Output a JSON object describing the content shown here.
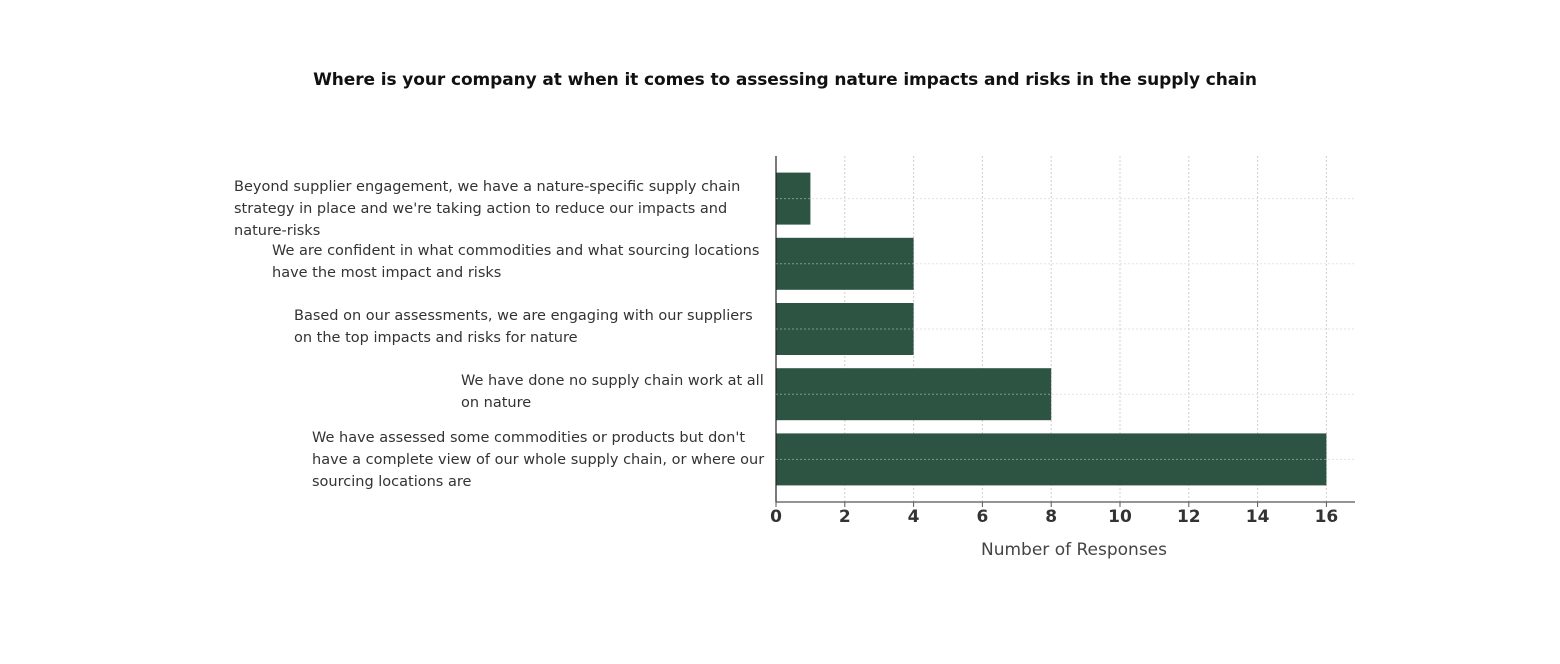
{
  "chart_data": {
    "type": "bar",
    "orientation": "horizontal",
    "title": "Where is your company at when it comes to assessing nature impacts and risks in the supply chain",
    "xlabel": "Number of Responses",
    "ylabel": "",
    "categories": [
      "Beyond supplier engagement, we have a nature-specific supply chain strategy in place and we're taking action to reduce our impacts and nature-risks",
      "We are confident in what commodities and what sourcing locations have the most impact and risks",
      "Based on our assessments, we are engaging with our suppliers on the top impacts and risks for nature",
      "We have done no supply chain work at all on nature",
      "We have assessed some commodities or products but don't have a complete view of our whole supply chain, or where our sourcing locations are"
    ],
    "values": [
      1,
      4,
      4,
      8,
      16
    ],
    "xlim": [
      0,
      16.8
    ],
    "xticks": [
      "0",
      "2",
      "4",
      "6",
      "8",
      "10",
      "12",
      "14",
      "16"
    ],
    "grid": true,
    "bar_color": "#2d5443"
  }
}
